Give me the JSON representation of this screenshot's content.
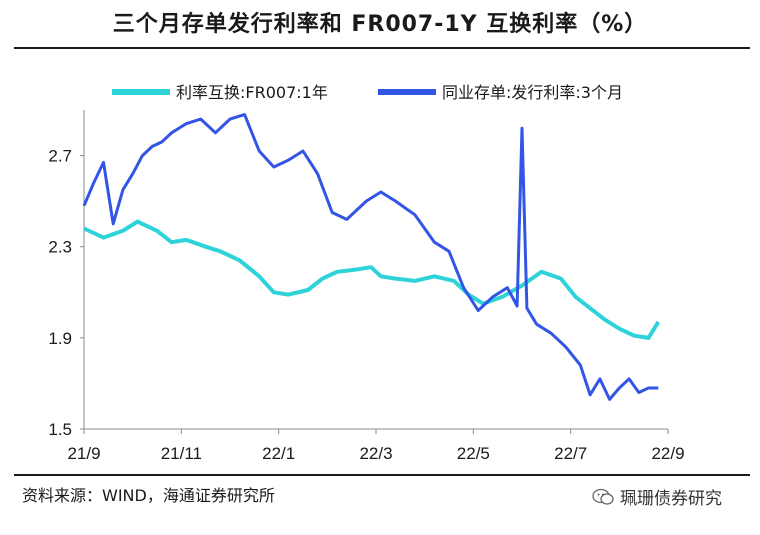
{
  "header": {
    "title": "三个月存单发行利率和 FR007-1Y 互换利率（%）"
  },
  "footer": {
    "source": "资料来源：WIND，海通证券研究所",
    "watermark": "珮珊债券研究"
  },
  "chart_data": {
    "type": "line",
    "title": "三个月存单发行利率和 FR007-1Y 互换利率（%）",
    "x_ticks": [
      "21/9",
      "21/11",
      "22/1",
      "22/3",
      "22/5",
      "22/7",
      "22/9"
    ],
    "y_ticks": [
      "2.7",
      "2.3",
      "1.9",
      "1.5"
    ],
    "ylim": [
      1.5,
      2.9
    ],
    "xlim": [
      0,
      12
    ],
    "legend": "top",
    "grid": false,
    "series": [
      {
        "name": "利率互换:FR007:1年",
        "color": "#2ed3d9",
        "x": [
          0,
          0.4,
          0.8,
          1.1,
          1.5,
          1.8,
          2.1,
          2.5,
          2.8,
          3.2,
          3.6,
          3.9,
          4.2,
          4.6,
          4.9,
          5.2,
          5.6,
          5.9,
          6.1,
          6.4,
          6.8,
          7.2,
          7.6,
          7.9,
          8.2,
          8.6,
          9.0,
          9.4,
          9.8,
          10.1,
          10.4,
          10.7,
          11.0,
          11.3,
          11.6,
          11.8
        ],
        "values": [
          2.38,
          2.34,
          2.37,
          2.41,
          2.37,
          2.32,
          2.33,
          2.3,
          2.28,
          2.24,
          2.17,
          2.1,
          2.09,
          2.11,
          2.16,
          2.19,
          2.2,
          2.21,
          2.17,
          2.16,
          2.15,
          2.17,
          2.15,
          2.09,
          2.05,
          2.08,
          2.13,
          2.19,
          2.16,
          2.08,
          2.03,
          1.98,
          1.94,
          1.91,
          1.9,
          1.97
        ]
      },
      {
        "name": "同业存单:发行利率:3个月",
        "color": "#3355e6",
        "x": [
          0,
          0.2,
          0.4,
          0.6,
          0.8,
          1.0,
          1.2,
          1.4,
          1.6,
          1.8,
          2.1,
          2.4,
          2.7,
          3.0,
          3.3,
          3.6,
          3.9,
          4.2,
          4.5,
          4.8,
          5.1,
          5.4,
          5.8,
          6.1,
          6.4,
          6.8,
          7.2,
          7.5,
          7.8,
          8.1,
          8.4,
          8.7,
          8.9,
          9.0,
          9.1,
          9.3,
          9.6,
          9.9,
          10.2,
          10.4,
          10.6,
          10.8,
          11.0,
          11.2,
          11.4,
          11.6,
          11.8
        ],
        "values": [
          2.48,
          2.58,
          2.67,
          2.4,
          2.55,
          2.62,
          2.7,
          2.74,
          2.76,
          2.8,
          2.84,
          2.86,
          2.8,
          2.86,
          2.88,
          2.72,
          2.65,
          2.68,
          2.72,
          2.62,
          2.45,
          2.42,
          2.5,
          2.54,
          2.5,
          2.44,
          2.32,
          2.28,
          2.12,
          2.02,
          2.08,
          2.12,
          2.04,
          2.82,
          2.03,
          1.96,
          1.92,
          1.86,
          1.78,
          1.65,
          1.72,
          1.63,
          1.68,
          1.72,
          1.66,
          1.68,
          1.68
        ]
      }
    ]
  }
}
